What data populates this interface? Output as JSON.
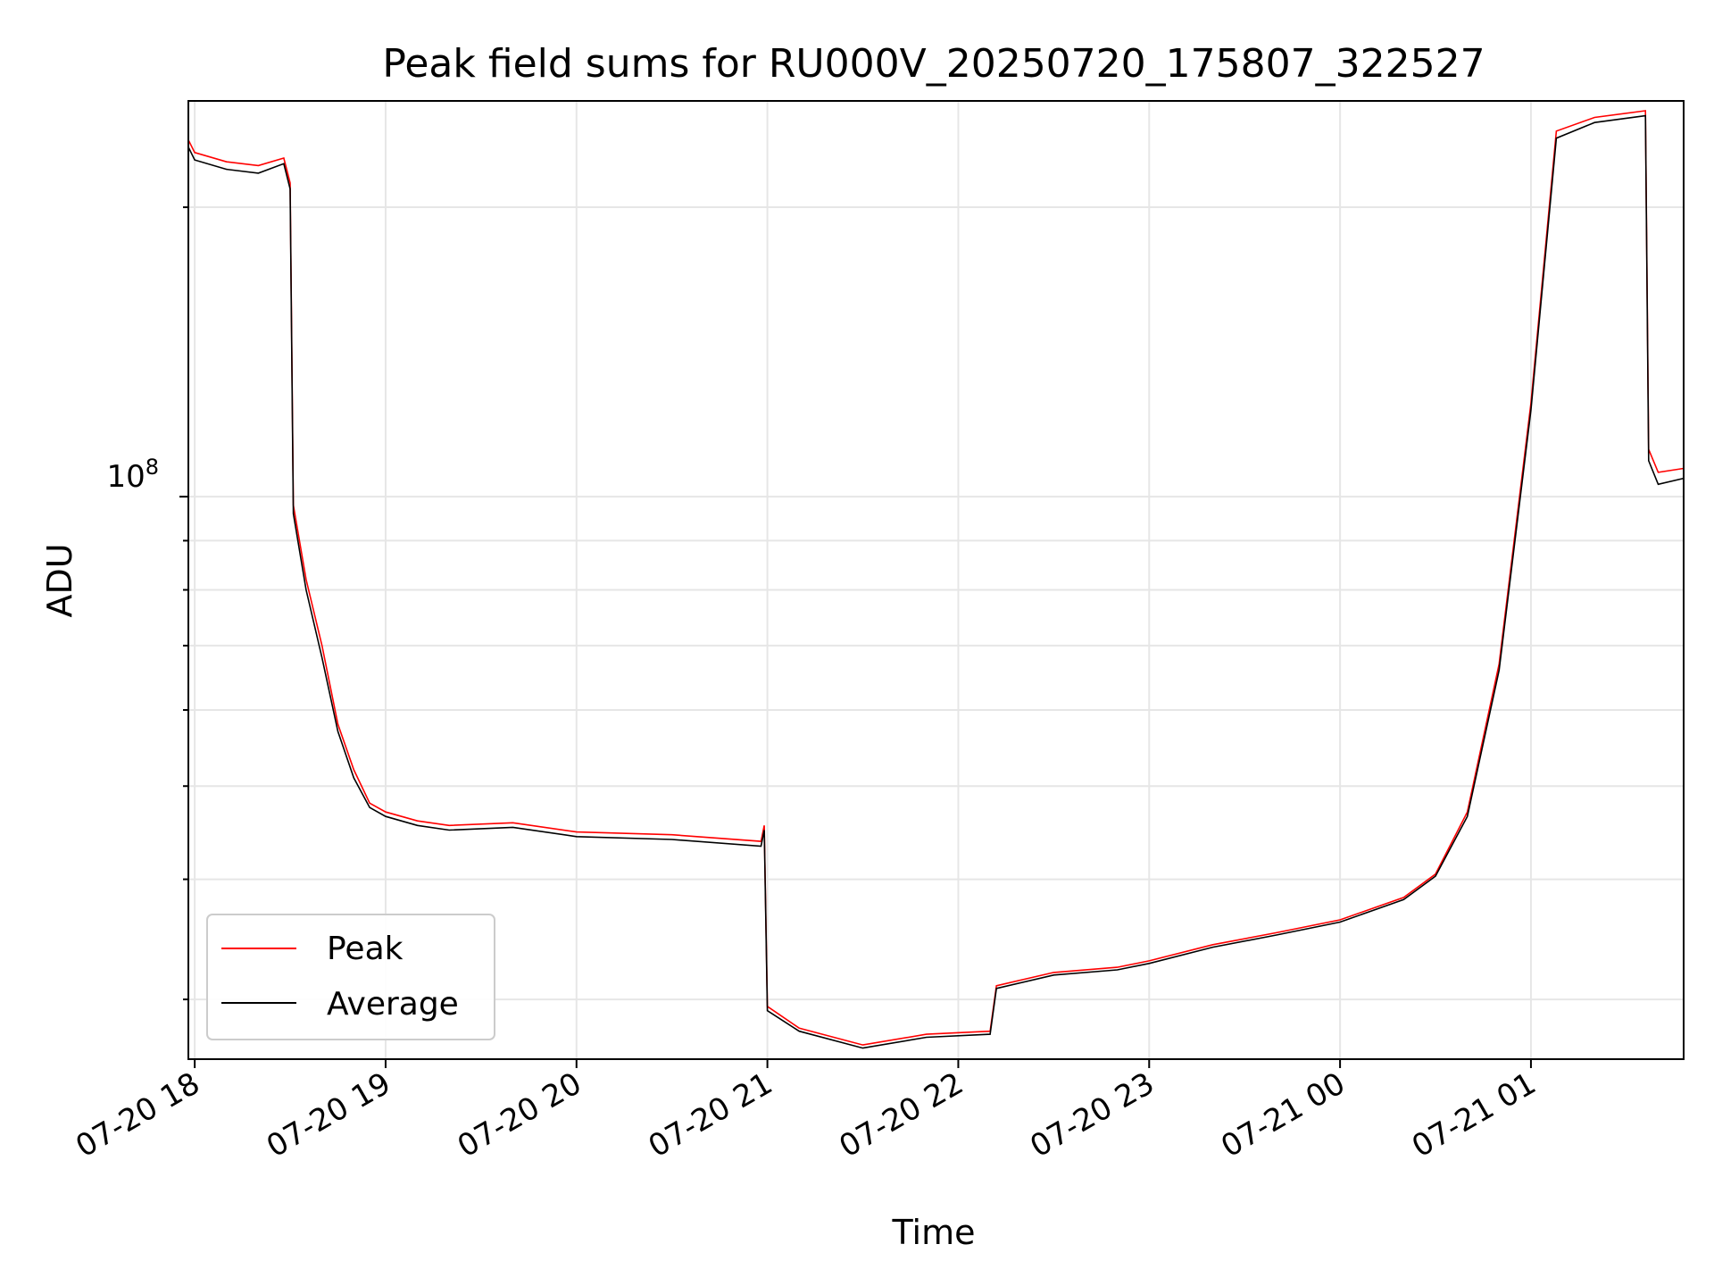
{
  "chart_data": {
    "type": "line",
    "title": "Peak field sums for RU000V_20250720_175807_322527",
    "xlabel": "Time",
    "ylabel": "ADU",
    "y_scale": "log",
    "y_tick_label": "10",
    "y_tick_exp": "8",
    "ylim": [
      26000000,
      258000000
    ],
    "xlim": [
      "2025-07-20 17:58",
      "2025-07-21 01:48"
    ],
    "x_ticks": [
      "2025-07-20 18:00",
      "2025-07-20 19:00",
      "2025-07-20 20:00",
      "2025-07-20 21:00",
      "2025-07-20 22:00",
      "2025-07-20 23:00",
      "2025-07-21 00:00",
      "2025-07-21 01:00"
    ],
    "x_tick_labels": [
      "07-20 18",
      "07-20 19",
      "07-20 20",
      "07-20 21",
      "07-20 22",
      "07-20 23",
      "07-21 00",
      "07-21 01"
    ],
    "grid": true,
    "legend_position": "lower-left",
    "series": [
      {
        "name": "Peak",
        "color": "#ff0000",
        "points": [
          [
            "2025-07-20 17:58",
            235000000
          ],
          [
            "2025-07-20 18:00",
            228000000
          ],
          [
            "2025-07-20 18:10",
            223000000
          ],
          [
            "2025-07-20 18:20",
            221000000
          ],
          [
            "2025-07-20 18:28",
            225000000
          ],
          [
            "2025-07-20 18:30",
            212000000
          ],
          [
            "2025-07-20 18:31",
            98000000
          ],
          [
            "2025-07-20 18:35",
            82000000
          ],
          [
            "2025-07-20 18:40",
            70000000
          ],
          [
            "2025-07-20 18:45",
            58000000
          ],
          [
            "2025-07-20 18:50",
            52000000
          ],
          [
            "2025-07-20 18:55",
            48000000
          ],
          [
            "2025-07-20 19:00",
            47000000
          ],
          [
            "2025-07-20 19:10",
            46000000
          ],
          [
            "2025-07-20 19:20",
            45500000
          ],
          [
            "2025-07-20 19:40",
            45800000
          ],
          [
            "2025-07-20 20:00",
            44800000
          ],
          [
            "2025-07-20 20:30",
            44500000
          ],
          [
            "2025-07-20 20:58",
            43800000
          ],
          [
            "2025-07-20 20:59",
            45500000
          ],
          [
            "2025-07-20 21:00",
            29500000
          ],
          [
            "2025-07-20 21:10",
            28000000
          ],
          [
            "2025-07-20 21:30",
            26900000
          ],
          [
            "2025-07-20 21:50",
            27600000
          ],
          [
            "2025-07-20 22:10",
            27800000
          ],
          [
            "2025-07-20 22:12",
            31000000
          ],
          [
            "2025-07-20 22:30",
            32000000
          ],
          [
            "2025-07-20 22:50",
            32400000
          ],
          [
            "2025-07-20 23:00",
            32900000
          ],
          [
            "2025-07-20 23:20",
            34200000
          ],
          [
            "2025-07-20 23:40",
            35200000
          ],
          [
            "2025-07-21 00:00",
            36300000
          ],
          [
            "2025-07-21 00:20",
            38300000
          ],
          [
            "2025-07-21 00:30",
            40500000
          ],
          [
            "2025-07-21 00:40",
            47000000
          ],
          [
            "2025-07-21 00:50",
            67000000
          ],
          [
            "2025-07-21 01:00",
            125000000
          ],
          [
            "2025-07-21 01:08",
            240000000
          ],
          [
            "2025-07-21 01:20",
            248000000
          ],
          [
            "2025-07-21 01:36",
            252000000
          ],
          [
            "2025-07-21 01:37",
            112000000
          ],
          [
            "2025-07-21 01:40",
            106000000
          ],
          [
            "2025-07-21 01:48",
            107000000
          ]
        ]
      },
      {
        "name": "Average",
        "color": "#000000",
        "points": [
          [
            "2025-07-20 17:58",
            231000000
          ],
          [
            "2025-07-20 18:00",
            224000000
          ],
          [
            "2025-07-20 18:10",
            219000000
          ],
          [
            "2025-07-20 18:20",
            217000000
          ],
          [
            "2025-07-20 18:28",
            222000000
          ],
          [
            "2025-07-20 18:30",
            209000000
          ],
          [
            "2025-07-20 18:31",
            96000000
          ],
          [
            "2025-07-20 18:35",
            80000000
          ],
          [
            "2025-07-20 18:40",
            68000000
          ],
          [
            "2025-07-20 18:45",
            57000000
          ],
          [
            "2025-07-20 18:50",
            51000000
          ],
          [
            "2025-07-20 18:55",
            47500000
          ],
          [
            "2025-07-20 19:00",
            46500000
          ],
          [
            "2025-07-20 19:10",
            45500000
          ],
          [
            "2025-07-20 19:20",
            45000000
          ],
          [
            "2025-07-20 19:40",
            45300000
          ],
          [
            "2025-07-20 20:00",
            44300000
          ],
          [
            "2025-07-20 20:30",
            44000000
          ],
          [
            "2025-07-20 20:58",
            43300000
          ],
          [
            "2025-07-20 20:59",
            45000000
          ],
          [
            "2025-07-20 21:00",
            29200000
          ],
          [
            "2025-07-20 21:10",
            27800000
          ],
          [
            "2025-07-20 21:30",
            26700000
          ],
          [
            "2025-07-20 21:50",
            27400000
          ],
          [
            "2025-07-20 22:10",
            27600000
          ],
          [
            "2025-07-20 22:12",
            30800000
          ],
          [
            "2025-07-20 22:30",
            31800000
          ],
          [
            "2025-07-20 22:50",
            32200000
          ],
          [
            "2025-07-20 23:00",
            32700000
          ],
          [
            "2025-07-20 23:20",
            34000000
          ],
          [
            "2025-07-20 23:40",
            35000000
          ],
          [
            "2025-07-21 00:00",
            36100000
          ],
          [
            "2025-07-21 00:20",
            38100000
          ],
          [
            "2025-07-21 00:30",
            40300000
          ],
          [
            "2025-07-21 00:40",
            46500000
          ],
          [
            "2025-07-21 00:50",
            66000000
          ],
          [
            "2025-07-21 01:00",
            123000000
          ],
          [
            "2025-07-21 01:08",
            236000000
          ],
          [
            "2025-07-21 01:20",
            245000000
          ],
          [
            "2025-07-21 01:36",
            249000000
          ],
          [
            "2025-07-21 01:37",
            109000000
          ],
          [
            "2025-07-21 01:40",
            103000000
          ],
          [
            "2025-07-21 01:48",
            104500000
          ]
        ]
      }
    ]
  }
}
